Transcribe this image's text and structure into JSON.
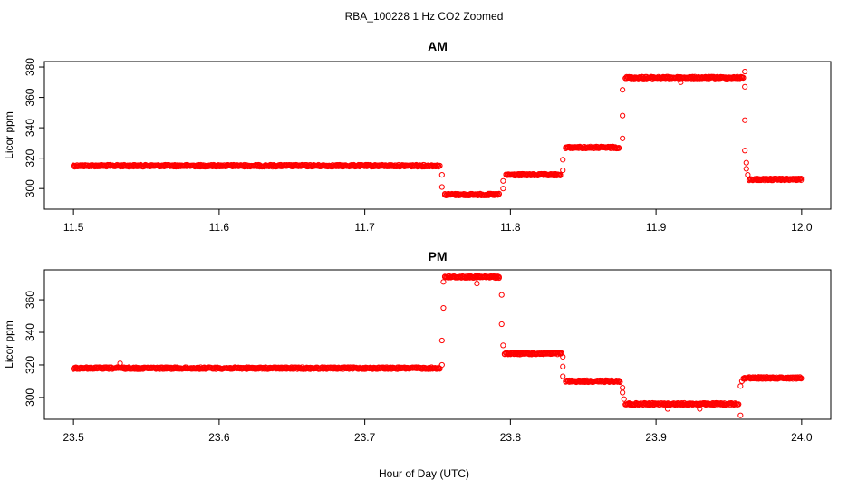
{
  "title": "RBA_100228  1 Hz CO2 Zoomed",
  "xlabel": "Hour of Day (UTC)",
  "point_color": "#ff0000",
  "chart_data": [
    {
      "type": "scatter",
      "title": "AM",
      "ylabel": "Licor ppm",
      "xlim": [
        11.5,
        12.0
      ],
      "ylim": [
        290,
        380
      ],
      "x_ticks": [
        "11.5",
        "11.6",
        "11.7",
        "11.8",
        "11.9",
        "12.0"
      ],
      "y_ticks": [
        "300",
        "320",
        "340",
        "360",
        "380"
      ],
      "segments": [
        {
          "x_start": 11.5,
          "x_end": 11.752,
          "y": 315
        },
        {
          "x_start": 11.755,
          "x_end": 11.793,
          "y": 296
        },
        {
          "x_start": 11.797,
          "x_end": 11.835,
          "y": 309
        },
        {
          "x_start": 11.838,
          "x_end": 11.875,
          "y": 327
        },
        {
          "x_start": 11.879,
          "x_end": 11.96,
          "y": 373
        },
        {
          "x_start": 11.964,
          "x_end": 12.0,
          "y": 306
        }
      ],
      "transitions": [
        {
          "x": 11.753,
          "y": 309
        },
        {
          "x": 11.753,
          "y": 301
        },
        {
          "x": 11.795,
          "y": 300
        },
        {
          "x": 11.795,
          "y": 305
        },
        {
          "x": 11.836,
          "y": 312
        },
        {
          "x": 11.836,
          "y": 319
        },
        {
          "x": 11.877,
          "y": 333
        },
        {
          "x": 11.877,
          "y": 348
        },
        {
          "x": 11.877,
          "y": 365
        },
        {
          "x": 11.917,
          "y": 370
        },
        {
          "x": 11.961,
          "y": 377
        },
        {
          "x": 11.961,
          "y": 367
        },
        {
          "x": 11.961,
          "y": 345
        },
        {
          "x": 11.961,
          "y": 325
        },
        {
          "x": 11.962,
          "y": 317
        },
        {
          "x": 11.962,
          "y": 313
        },
        {
          "x": 11.963,
          "y": 309
        }
      ]
    },
    {
      "type": "scatter",
      "title": "PM",
      "ylabel": "Licor ppm",
      "xlim": [
        23.5,
        24.0
      ],
      "ylim": [
        290,
        375
      ],
      "x_ticks": [
        "23.5",
        "23.6",
        "23.7",
        "23.8",
        "23.9",
        "24.0"
      ],
      "y_ticks": [
        "300",
        "320",
        "340",
        "360"
      ],
      "segments": [
        {
          "x_start": 23.5,
          "x_end": 23.752,
          "y": 318
        },
        {
          "x_start": 23.755,
          "x_end": 23.793,
          "y": 374
        },
        {
          "x_start": 23.796,
          "x_end": 23.835,
          "y": 327
        },
        {
          "x_start": 23.838,
          "x_end": 23.876,
          "y": 310
        },
        {
          "x_start": 23.879,
          "x_end": 23.957,
          "y": 296
        },
        {
          "x_start": 23.96,
          "x_end": 24.0,
          "y": 312
        }
      ],
      "transitions": [
        {
          "x": 23.532,
          "y": 321
        },
        {
          "x": 23.753,
          "y": 320
        },
        {
          "x": 23.753,
          "y": 335
        },
        {
          "x": 23.754,
          "y": 355
        },
        {
          "x": 23.754,
          "y": 371
        },
        {
          "x": 23.777,
          "y": 370
        },
        {
          "x": 23.794,
          "y": 363
        },
        {
          "x": 23.794,
          "y": 345
        },
        {
          "x": 23.795,
          "y": 332
        },
        {
          "x": 23.836,
          "y": 325
        },
        {
          "x": 23.836,
          "y": 319
        },
        {
          "x": 23.836,
          "y": 313
        },
        {
          "x": 23.877,
          "y": 306
        },
        {
          "x": 23.877,
          "y": 303
        },
        {
          "x": 23.878,
          "y": 299
        },
        {
          "x": 23.908,
          "y": 293
        },
        {
          "x": 23.93,
          "y": 293
        },
        {
          "x": 23.958,
          "y": 289
        },
        {
          "x": 23.958,
          "y": 307
        },
        {
          "x": 23.959,
          "y": 310
        }
      ]
    }
  ]
}
